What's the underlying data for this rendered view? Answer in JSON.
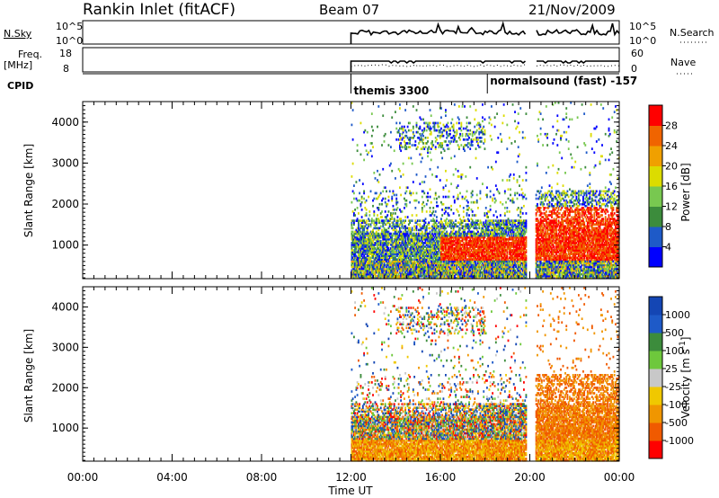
{
  "header": {
    "station": "Rankin Inlet (fitACF)",
    "beam": "Beam 07",
    "date": "21/Nov/2009"
  },
  "status_panels": {
    "nsky_label": "N.Sky",
    "nsky_ticks": [
      "10^5",
      "10^0"
    ],
    "nsearch_label": "N.Search",
    "nsearch_ticks": [
      "10^5",
      "10^0"
    ],
    "freq_label": "Freq.",
    "freq_unit": "[MHz]",
    "freq_ticks": [
      "18",
      "8"
    ],
    "nave_label": "Nave",
    "nave_ticks": [
      "60",
      "0"
    ],
    "cpid_label": "CPID",
    "cpid_segments": [
      {
        "start_hour": 12.0,
        "label": "themis 3300"
      },
      {
        "start_hour": 18.1,
        "label": "normalsound (fast) -157"
      }
    ]
  },
  "colors": {
    "power_scale": [
      "#0000ff",
      "#1e5ac8",
      "#3c8c3c",
      "#78c850",
      "#dcdc00",
      "#f0a000",
      "#f06400",
      "#ff0000"
    ],
    "velocity_scale": [
      "#ff0000",
      "#f05a00",
      "#f09600",
      "#f0c800",
      "#c8c8c8",
      "#6ec83c",
      "#3c8c3c",
      "#1e5ac8",
      "#1446b4"
    ]
  },
  "chart_data": [
    {
      "type": "heatmap",
      "panel": "power",
      "xlabel": "Time UT",
      "ylabel": "Slant Range [km]",
      "x_ticks": [
        "00:00",
        "04:00",
        "08:00",
        "12:00",
        "16:00",
        "20:00",
        "00:00"
      ],
      "xlim_hours": [
        0,
        24
      ],
      "y_ticks": [
        1000,
        2000,
        3000,
        4000
      ],
      "ylim": [
        180,
        4500
      ],
      "colorbar_label": "Power [dB]",
      "colorbar_ticks": [
        "4",
        "8",
        "12",
        "16",
        "20",
        "24",
        "28"
      ],
      "data_start_hour": 12.0,
      "gap_hours": [
        19.85,
        20.25
      ]
    },
    {
      "type": "heatmap",
      "panel": "velocity",
      "xlabel": "Time UT",
      "ylabel": "Slant Range [km]",
      "x_ticks": [
        "00:00",
        "04:00",
        "08:00",
        "12:00",
        "16:00",
        "20:00",
        "00:00"
      ],
      "xlim_hours": [
        0,
        24
      ],
      "y_ticks": [
        1000,
        2000,
        3000,
        4000
      ],
      "ylim": [
        180,
        4500
      ],
      "colorbar_label": "Velocity [m s^-1]",
      "colorbar_ticks": [
        "1000",
        "500",
        "100",
        "25",
        "-25",
        "-100",
        "-500",
        "-1000"
      ],
      "data_start_hour": 12.0,
      "gap_hours": [
        19.85,
        20.25
      ]
    }
  ]
}
